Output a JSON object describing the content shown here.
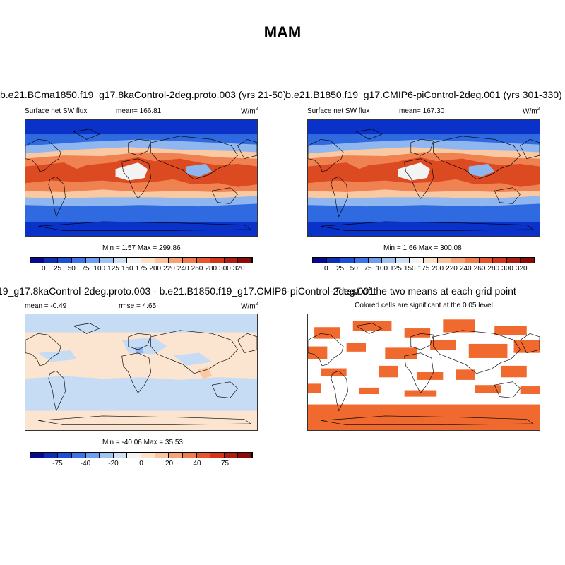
{
  "page": {
    "title": "MAM"
  },
  "panels": {
    "top_left": {
      "title": "b.e21.BCma1850.f19_g17.8kaControl-2deg.proto.003 (yrs 21-50)",
      "left_label": "Surface net SW flux",
      "center_label": "mean= 166.81",
      "units": "W/m",
      "units_sup": "2",
      "stats": "Min =   1.57 Max = 299.86"
    },
    "top_right": {
      "title": "b.e21.B1850.f19_g17.CMIP6-piControl-2deg.001 (yrs 301-330)",
      "left_label": "Surface net SW flux",
      "center_label": "mean= 167.30",
      "units": "W/m",
      "units_sup": "2",
      "stats": "Min =   1.66 Max = 300.08"
    },
    "bottom_left": {
      "title": "19_g17.8kaControl-2deg.proto.003 - b.e21.B1850.f19_g17.CMIP6-piControl-2deg.001",
      "left_label": "mean =  -0.49",
      "center_label": "rmse =   4.65",
      "units": "W/m",
      "units_sup": "2",
      "stats": "Min = -40.06 Max =  35.53"
    },
    "bottom_right": {
      "title": "T-test of the two means at each grid point",
      "subtitle": "Colored cells are significant at the 0.05 level"
    }
  },
  "colorbars": {
    "flux": {
      "colors": [
        "#08088c",
        "#0c2db4",
        "#1c4fd6",
        "#3a74e8",
        "#6e9ef0",
        "#a2c2f2",
        "#cfe0f6",
        "#f4f4f4",
        "#fce2c8",
        "#f9c49e",
        "#f6a274",
        "#f07e4c",
        "#e8552a",
        "#d4341a",
        "#b01c10",
        "#8a0a08"
      ],
      "labels": [
        "0",
        "25",
        "50",
        "75",
        "100",
        "125",
        "150",
        "175",
        "200",
        "220",
        "240",
        "260",
        "280",
        "300",
        "320"
      ]
    },
    "diff": {
      "colors": [
        "#08088c",
        "#0c2db4",
        "#1c4fd6",
        "#3a74e8",
        "#6e9ef0",
        "#a2c2f2",
        "#cfe0f6",
        "#f4f4f4",
        "#fce2c8",
        "#f9c49e",
        "#f6a274",
        "#f07e4c",
        "#e8552a",
        "#d4341a",
        "#b01c10",
        "#8a0a08"
      ],
      "labels": [
        "-75",
        "-40",
        "-20",
        "0",
        "20",
        "40",
        "75"
      ]
    }
  },
  "map_colors": {
    "deep_blue": "#0a32c8",
    "mid_blue": "#2f6ae0",
    "light_blue": "#8fb6ef",
    "pale": "#f3f3f3",
    "peach": "#f9c9a4",
    "orange": "#f08150",
    "red": "#dc4a22",
    "diff_blue": "#c6dcf4",
    "diff_peach": "#fbe4d0",
    "sig": "#f06a2f"
  }
}
